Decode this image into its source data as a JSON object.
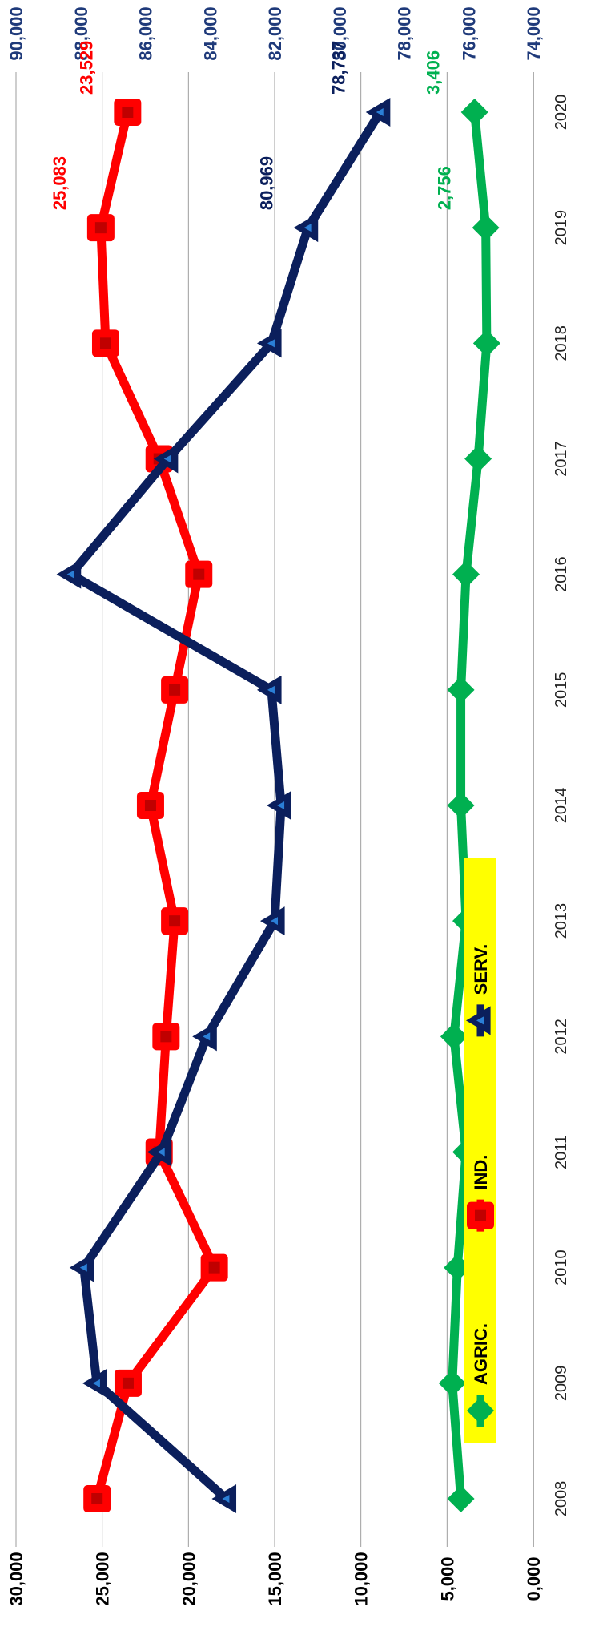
{
  "chart_data": {
    "type": "line",
    "title": "",
    "categories": [
      "2008",
      "2009",
      "2010",
      "2011",
      "2012",
      "2013",
      "2014",
      "2015",
      "2016",
      "2017",
      "2018",
      "2019",
      "2020"
    ],
    "left_axis": {
      "range": [
        0,
        30000
      ],
      "ticks": [
        0,
        5000,
        10000,
        15000,
        20000,
        25000,
        30000
      ],
      "tick_labels": [
        "0,000",
        "5,000",
        "10,000",
        "15,000",
        "20,000",
        "25,000",
        "30,000"
      ],
      "color": "#000000"
    },
    "right_axis": {
      "range": [
        74000,
        90000
      ],
      "ticks": [
        74000,
        76000,
        78000,
        80000,
        82000,
        84000,
        86000,
        88000,
        90000
      ],
      "tick_labels": [
        "74,000",
        "76,000",
        "78,000",
        "80,000",
        "82,000",
        "84,000",
        "86,000",
        "88,000",
        "90,000"
      ],
      "color": "#1f3a7a"
    },
    "grid": true,
    "legend_position": "bottom",
    "series": [
      {
        "name": "AGRIC.",
        "axis": "left",
        "color": "#00b050",
        "marker": "diamond",
        "values": [
          4200,
          4700,
          4400,
          3900,
          4600,
          3900,
          4200,
          4200,
          3900,
          3200,
          2700,
          2756,
          3406
        ],
        "labels": {
          "11": "2,756",
          "12": "3,406"
        }
      },
      {
        "name": "IND.",
        "axis": "left",
        "color": "#ff0000",
        "marker": "square",
        "values": [
          25300,
          23500,
          18500,
          21700,
          21300,
          20800,
          22200,
          20800,
          19400,
          21700,
          24800,
          25083,
          23529
        ],
        "labels": {
          "11": "25,083",
          "12": "23,529"
        }
      },
      {
        "name": "SERV.",
        "axis": "right",
        "color": "#0b1f5c",
        "marker": "triangle",
        "values": [
          83500,
          87500,
          87900,
          85500,
          84100,
          82000,
          81800,
          82100,
          88300,
          85300,
          82100,
          80969,
          78737
        ],
        "labels": {
          "11": "80,969",
          "12": "78,737"
        }
      }
    ]
  }
}
